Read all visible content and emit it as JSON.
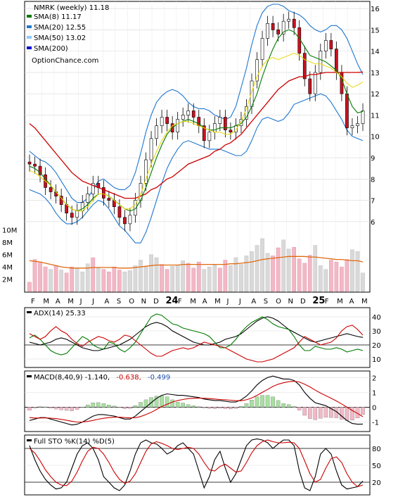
{
  "chart_data": [
    {
      "type": "candlestick",
      "symbol": "NMRK",
      "title": "NMRK (weekly) 11.18",
      "watermark": "OptionChance.com",
      "y_ticks": [
        6,
        7,
        8,
        9,
        10,
        11,
        12,
        13,
        14,
        15,
        16
      ],
      "ylim": [
        5.5,
        16.2
      ],
      "x_labels": [
        "F",
        "M",
        "A",
        "M",
        "J",
        "J",
        "A",
        "S",
        "O",
        "N",
        "D",
        "24",
        "F",
        "M",
        "A",
        "M",
        "J",
        "J",
        "A",
        "S",
        "O",
        "N",
        "D",
        "25",
        "F",
        "M",
        "A",
        "M"
      ],
      "legend": [
        {
          "label": "SMA(8) 11.17",
          "color": "#007a00"
        },
        {
          "label": "SMA(20) 12.55",
          "color": "#1f77d0"
        },
        {
          "label": "SMA(50) 13.02",
          "color": "#8ec8ff"
        },
        {
          "label": "SMA(200)",
          "color": "#0000d0"
        }
      ],
      "close": [
        8.7,
        8.6,
        8.2,
        7.6,
        7.4,
        7.2,
        6.8,
        6.4,
        6.2,
        6.5,
        6.9,
        7.3,
        7.8,
        7.6,
        7.1,
        7.0,
        6.7,
        6.2,
        5.9,
        6.3,
        7.0,
        7.8,
        8.9,
        9.9,
        10.5,
        10.9,
        10.6,
        10.2,
        10.8,
        11.0,
        11.2,
        10.9,
        10.5,
        9.8,
        10.2,
        10.6,
        10.9,
        10.3,
        10.2,
        10.5,
        10.8,
        11.4,
        12.6,
        13.6,
        14.6,
        15.3,
        15.0,
        14.8,
        15.4,
        15.5,
        15.1,
        13.9,
        12.7,
        12.0,
        13.0,
        14.0,
        14.5,
        14.1,
        13.0,
        12.0,
        10.4,
        10.5,
        10.6,
        11.2
      ],
      "sma8": [
        8.6,
        8.5,
        8.3,
        8.0,
        7.7,
        7.4,
        7.1,
        6.8,
        6.6,
        6.5,
        6.6,
        6.8,
        7.1,
        7.3,
        7.3,
        7.2,
        7.0,
        6.8,
        6.6,
        6.5,
        6.6,
        7.0,
        7.6,
        8.3,
        9.0,
        9.6,
        10.1,
        10.4,
        10.6,
        10.7,
        10.8,
        10.7,
        10.6,
        10.4,
        10.3,
        10.3,
        10.4,
        10.4,
        10.4,
        10.5,
        10.6,
        10.9,
        11.4,
        12.0,
        12.8,
        13.5,
        14.1,
        14.6,
        14.9,
        15.0,
        14.9,
        14.6,
        14.2,
        13.8,
        13.7,
        13.6,
        13.5,
        13.3,
        13.1,
        12.7,
        12.0,
        11.4,
        11.1,
        11.17
      ],
      "sma20_upper": [
        9.3,
        9.1,
        8.9,
        8.8,
        8.6,
        8.3,
        7.9,
        7.5,
        7.1,
        6.9,
        6.9,
        7.1,
        7.5,
        7.9,
        8.0,
        7.8,
        7.6,
        7.5,
        7.5,
        7.7,
        8.3,
        9.2,
        10.2,
        11.0,
        11.6,
        11.9,
        12.1,
        12.2,
        12.1,
        11.9,
        11.6,
        11.4,
        11.3,
        11.3,
        11.2,
        11.0,
        10.9,
        10.8,
        10.9,
        11.4,
        12.3,
        13.2,
        14.3,
        15.2,
        15.8,
        16.1,
        16.2,
        16.2,
        16.1,
        15.9,
        15.8,
        15.7,
        15.5,
        15.2,
        15.0,
        14.9,
        15.0,
        15.2,
        15.2,
        15.0,
        14.6,
        14.0,
        13.4,
        12.9
      ],
      "sma20_lower": [
        7.5,
        7.4,
        7.3,
        7.1,
        6.8,
        6.4,
        6.1,
        5.9,
        5.9,
        6.0,
        6.2,
        6.5,
        6.8,
        7.0,
        6.9,
        6.6,
        6.2,
        5.8,
        5.6,
        5.3,
        5.0,
        5.0,
        5.5,
        6.2,
        7.0,
        7.8,
        8.5,
        9.0,
        9.4,
        9.7,
        9.8,
        9.7,
        9.6,
        9.5,
        9.4,
        9.4,
        9.4,
        9.3,
        9.2,
        9.1,
        9.1,
        9.3,
        9.8,
        10.4,
        10.8,
        10.9,
        10.8,
        10.7,
        10.8,
        11.1,
        11.5,
        11.6,
        11.7,
        11.8,
        11.9,
        12.0,
        11.9,
        11.6,
        11.2,
        10.8,
        10.3,
        10.0,
        9.9,
        9.8
      ],
      "sma20": [
        8.4,
        8.3,
        8.1,
        7.9,
        7.7,
        7.4,
        7.1,
        6.8,
        6.6,
        6.5,
        6.5,
        6.7,
        7.0,
        7.3,
        7.3,
        7.2,
        7.0,
        6.8,
        6.6,
        6.6,
        6.8,
        7.3,
        8.0,
        8.7,
        9.3,
        9.8,
        10.2,
        10.5,
        10.6,
        10.7,
        10.7,
        10.6,
        10.5,
        10.4,
        10.3,
        10.2,
        10.2,
        10.1,
        10.1,
        10.3,
        10.7,
        11.3,
        12.1,
        12.8,
        13.3,
        13.6,
        13.7,
        13.6,
        13.7,
        13.8,
        13.9,
        13.8,
        13.6,
        13.5,
        13.4,
        13.4,
        13.3,
        13.2,
        13.0,
        12.8,
        12.5,
        12.3,
        12.4,
        12.55
      ],
      "sma50": [
        10.6,
        10.4,
        10.1,
        9.8,
        9.5,
        9.2,
        8.9,
        8.6,
        8.3,
        8.1,
        7.9,
        7.8,
        7.7,
        7.6,
        7.5,
        7.4,
        7.3,
        7.2,
        7.1,
        7.1,
        7.1,
        7.2,
        7.3,
        7.5,
        7.6,
        7.8,
        8.0,
        8.1,
        8.3,
        8.5,
        8.7,
        8.8,
        8.9,
        9.0,
        9.1,
        9.3,
        9.4,
        9.6,
        9.7,
        9.9,
        10.1,
        10.4,
        10.7,
        11.0,
        11.3,
        11.6,
        11.9,
        12.2,
        12.4,
        12.6,
        12.7,
        12.8,
        12.8,
        12.9,
        12.9,
        12.95,
        13.0,
        13.0,
        13.0,
        13.0,
        13.0,
        13.0,
        13.0,
        13.02
      ]
    },
    {
      "type": "bar",
      "name": "volume",
      "y_ticks": [
        "2M",
        "4M",
        "6M",
        "8M",
        "10M"
      ],
      "ylim": [
        0,
        11
      ],
      "values": [
        1.5,
        5.2,
        4.8,
        4.0,
        3.6,
        4.2,
        3.5,
        3.0,
        4.0,
        3.8,
        3.2,
        4.5,
        5.5,
        3.8,
        3.6,
        3.2,
        4.0,
        3.5,
        3.2,
        3.4,
        4.2,
        5.1,
        4.0,
        6.0,
        5.5,
        4.4,
        3.6,
        4.1,
        4.3,
        5.0,
        4.6,
        3.8,
        4.8,
        3.6,
        4.0,
        4.3,
        3.8,
        5.1,
        4.2,
        5.5,
        4.4,
        5.8,
        6.5,
        7.5,
        8.6,
        6.2,
        5.8,
        7.1,
        8.4,
        6.9,
        7.2,
        5.3,
        4.6,
        5.9,
        7.5,
        4.2,
        3.6,
        5.1,
        4.8,
        4.0,
        5.2,
        6.8,
        6.5,
        3.0
      ],
      "up": [
        false,
        false,
        false,
        false,
        true,
        false,
        true,
        false,
        false,
        true,
        true,
        true,
        false,
        true,
        false,
        false,
        false,
        false,
        true,
        true,
        true,
        true,
        true,
        true,
        true,
        false,
        false,
        true,
        true,
        true,
        false,
        false,
        false,
        true,
        true,
        true,
        false,
        false,
        true,
        true,
        true,
        true,
        true,
        true,
        true,
        true,
        false,
        false,
        true,
        true,
        false,
        false,
        false,
        false,
        true,
        true,
        true,
        false,
        false,
        false,
        false,
        true,
        true,
        true
      ],
      "average": [
        5.0,
        4.9,
        4.8,
        4.6,
        4.4,
        4.2,
        4.0,
        3.9,
        3.8,
        3.8,
        3.8,
        3.8,
        3.9,
        3.9,
        3.9,
        3.9,
        3.9,
        3.8,
        3.8,
        3.8,
        3.9,
        4.0,
        4.1,
        4.2,
        4.3,
        4.3,
        4.3,
        4.3,
        4.3,
        4.4,
        4.4,
        4.4,
        4.4,
        4.4,
        4.4,
        4.4,
        4.4,
        4.4,
        4.5,
        4.5,
        4.6,
        4.7,
        4.8,
        5.0,
        5.2,
        5.3,
        5.4,
        5.5,
        5.6,
        5.7,
        5.7,
        5.7,
        5.7,
        5.6,
        5.6,
        5.5,
        5.4,
        5.3,
        5.2,
        5.2,
        5.1,
        5.0,
        5.0,
        4.8
      ]
    },
    {
      "type": "line",
      "name": "ADX(14) 25.33",
      "title": "ADX(14) 25.33",
      "y_ticks": [
        10,
        20,
        30,
        40
      ],
      "ylim": [
        5,
        45
      ],
      "reference": 20,
      "series": [
        {
          "color": "#000000",
          "values": [
            22,
            21,
            20,
            21,
            22,
            24,
            25,
            24,
            22,
            20,
            18,
            17,
            16,
            16,
            17,
            18,
            19,
            20,
            22,
            24,
            27,
            30,
            33,
            35,
            36,
            35,
            33,
            30,
            28,
            26,
            24,
            22,
            21,
            20,
            20,
            21,
            22,
            24,
            25,
            26,
            28,
            31,
            34,
            37,
            39,
            40,
            39,
            37,
            34,
            31,
            29,
            27,
            25,
            23,
            22,
            23,
            24,
            25,
            26,
            27,
            28,
            27,
            26,
            25.33
          ]
        },
        {
          "color": "#007a00",
          "values": [
            25,
            27,
            24,
            20,
            16,
            14,
            13,
            14,
            18,
            22,
            26,
            24,
            20,
            18,
            17,
            22,
            21,
            17,
            15,
            18,
            22,
            28,
            34,
            40,
            42,
            41,
            38,
            35,
            34,
            32,
            31,
            30,
            29,
            28,
            26,
            22,
            18,
            18,
            20,
            24,
            29,
            33,
            36,
            38,
            40,
            38,
            35,
            33,
            32,
            31,
            26,
            20,
            16,
            16,
            19,
            18,
            17,
            17,
            18,
            17,
            15,
            16,
            17,
            16
          ]
        },
        {
          "color": "#cc0000",
          "values": [
            28,
            26,
            24,
            26,
            30,
            33,
            30,
            28,
            24,
            21,
            19,
            22,
            24,
            26,
            25,
            23,
            22,
            24,
            27,
            26,
            23,
            20,
            17,
            14,
            12,
            12,
            14,
            16,
            17,
            18,
            17,
            18,
            20,
            22,
            21,
            20,
            19,
            18,
            16,
            14,
            12,
            10,
            9,
            8,
            8,
            9,
            10,
            12,
            14,
            16,
            18,
            22,
            26,
            24,
            22,
            20,
            21,
            22,
            25,
            30,
            33,
            34,
            31,
            27
          ]
        }
      ]
    },
    {
      "type": "line",
      "name": "MACD(8,40,9)",
      "title_parts": [
        "MACD(8,40,9) -1.140,",
        "-0.638,",
        "-0.499"
      ],
      "title_colors": [
        "#000000",
        "#cc0000",
        "#1f4fb0"
      ],
      "y_ticks": [
        -1,
        0,
        1,
        2
      ],
      "ylim": [
        -1.5,
        2.3
      ],
      "series": [
        {
          "name": "macd",
          "color": "#000000",
          "values": [
            -0.9,
            -0.8,
            -0.7,
            -0.7,
            -0.8,
            -0.9,
            -1.0,
            -1.1,
            -1.2,
            -1.15,
            -1.0,
            -0.8,
            -0.6,
            -0.5,
            -0.5,
            -0.55,
            -0.6,
            -0.7,
            -0.8,
            -0.8,
            -0.6,
            -0.3,
            0.0,
            0.3,
            0.6,
            0.8,
            0.9,
            0.85,
            0.8,
            0.8,
            0.75,
            0.7,
            0.65,
            0.55,
            0.5,
            0.45,
            0.45,
            0.4,
            0.35,
            0.35,
            0.5,
            0.75,
            1.1,
            1.5,
            1.8,
            2.0,
            2.1,
            2.0,
            1.9,
            1.9,
            1.8,
            1.5,
            1.0,
            0.6,
            0.3,
            0.2,
            0.1,
            -0.1,
            -0.3,
            -0.6,
            -0.9,
            -1.1,
            -1.15,
            -1.14
          ]
        },
        {
          "name": "signal",
          "color": "#cc0000",
          "values": [
            -0.7,
            -0.73,
            -0.73,
            -0.72,
            -0.74,
            -0.77,
            -0.82,
            -0.88,
            -0.95,
            -1.0,
            -1.0,
            -0.96,
            -0.89,
            -0.81,
            -0.75,
            -0.7,
            -0.68,
            -0.67,
            -0.7,
            -0.72,
            -0.71,
            -0.63,
            -0.5,
            -0.35,
            -0.15,
            0.05,
            0.2,
            0.35,
            0.45,
            0.52,
            0.58,
            0.6,
            0.62,
            0.6,
            0.58,
            0.55,
            0.52,
            0.5,
            0.47,
            0.44,
            0.44,
            0.5,
            0.62,
            0.8,
            1.0,
            1.2,
            1.4,
            1.55,
            1.65,
            1.72,
            1.75,
            1.7,
            1.55,
            1.37,
            1.15,
            0.95,
            0.78,
            0.6,
            0.42,
            0.22,
            0.0,
            -0.22,
            -0.42,
            -0.64
          ]
        }
      ]
    },
    {
      "type": "line",
      "name": "Full STO %K(14) %D(5)",
      "title": "Full STO %K(14) %D(5)",
      "y_ticks": [
        20,
        50,
        80
      ],
      "ylim": [
        0,
        100
      ],
      "series": [
        {
          "name": "%K",
          "color": "#000000",
          "values": [
            85,
            60,
            40,
            25,
            15,
            8,
            10,
            20,
            45,
            70,
            85,
            90,
            80,
            60,
            30,
            20,
            10,
            5,
            15,
            40,
            70,
            90,
            95,
            90,
            88,
            80,
            70,
            75,
            85,
            90,
            80,
            70,
            40,
            10,
            30,
            60,
            75,
            45,
            20,
            35,
            60,
            85,
            95,
            97,
            95,
            90,
            80,
            88,
            95,
            95,
            85,
            40,
            10,
            5,
            30,
            70,
            80,
            70,
            40,
            15,
            8,
            10,
            12,
            22
          ]
        },
        {
          "name": "%D",
          "color": "#cc0000",
          "values": [
            80,
            72,
            58,
            42,
            30,
            20,
            15,
            14,
            22,
            38,
            58,
            75,
            82,
            80,
            70,
            55,
            38,
            25,
            18,
            22,
            35,
            55,
            75,
            88,
            92,
            89,
            85,
            80,
            78,
            80,
            82,
            80,
            70,
            55,
            42,
            40,
            48,
            52,
            45,
            38,
            40,
            55,
            72,
            85,
            92,
            95,
            92,
            90,
            90,
            91,
            90,
            80,
            58,
            35,
            20,
            25,
            45,
            62,
            65,
            55,
            35,
            20,
            12,
            15
          ]
        }
      ]
    }
  ]
}
